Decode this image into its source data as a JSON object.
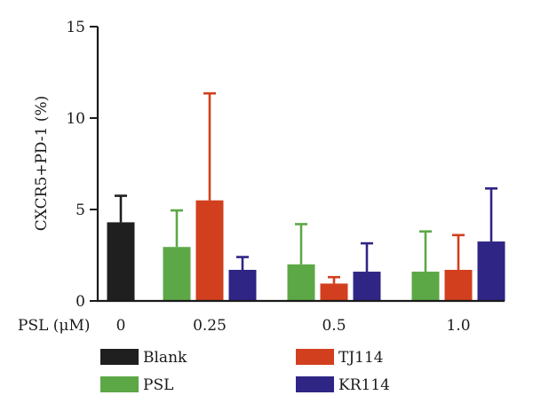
{
  "chart_data": {
    "type": "bar",
    "ylabel": "CXCR5+PD-1 (%)",
    "xlabel": "PSL (μM)",
    "ylim": [
      0,
      15
    ],
    "yticks": [
      0,
      5,
      10,
      15
    ],
    "legend_position": "bottom",
    "groups": [
      {
        "label": "0",
        "bars": [
          {
            "series": "Blank",
            "value": 4.3,
            "error": 1.45
          }
        ]
      },
      {
        "label": "0.25",
        "bars": [
          {
            "series": "PSL",
            "value": 2.95,
            "error": 2.0
          },
          {
            "series": "TJ114",
            "value": 5.5,
            "error": 5.85
          },
          {
            "series": "KR114",
            "value": 1.7,
            "error": 0.7
          }
        ]
      },
      {
        "label": "0.5",
        "bars": [
          {
            "series": "PSL",
            "value": 2.0,
            "error": 2.2
          },
          {
            "series": "TJ114",
            "value": 0.95,
            "error": 0.35
          },
          {
            "series": "KR114",
            "value": 1.6,
            "error": 1.55
          }
        ]
      },
      {
        "label": "1.0",
        "bars": [
          {
            "series": "PSL",
            "value": 1.6,
            "error": 2.2
          },
          {
            "series": "TJ114",
            "value": 1.7,
            "error": 1.9
          },
          {
            "series": "KR114",
            "value": 3.25,
            "error": 2.9
          }
        ]
      }
    ],
    "series": [
      {
        "name": "Blank",
        "color": "#1f1f1f"
      },
      {
        "name": "PSL",
        "color": "#5ca846"
      },
      {
        "name": "TJ114",
        "color": "#d23f1e"
      },
      {
        "name": "KR114",
        "color": "#2f2585"
      }
    ]
  }
}
